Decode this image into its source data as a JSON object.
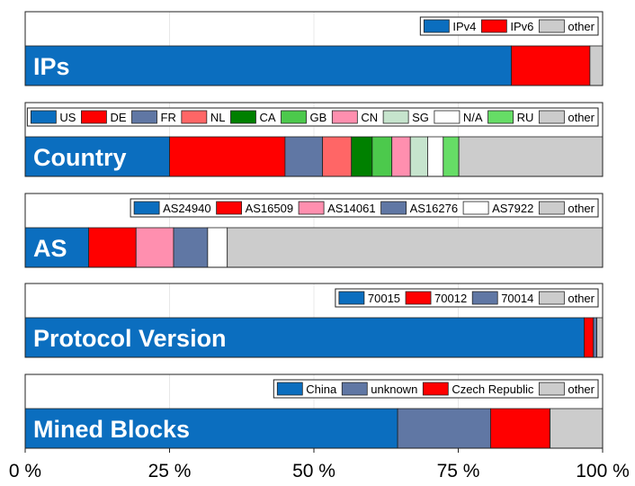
{
  "chart_data": {
    "type": "bar",
    "orientation": "horizontal-stacked-100",
    "xlim": [
      0,
      100
    ],
    "x_ticks": [
      {
        "value": 0,
        "label": "0 %"
      },
      {
        "value": 25,
        "label": "25 %"
      },
      {
        "value": 50,
        "label": "50 %"
      },
      {
        "value": 75,
        "label": "75 %"
      },
      {
        "value": 100,
        "label": "100 %"
      }
    ],
    "grid": true,
    "legend_position": "top-right",
    "panels": [
      {
        "title": "IPs",
        "segments": [
          {
            "name": "IPv4",
            "value": 84.2,
            "color": "#0b6ebf"
          },
          {
            "name": "IPv6",
            "value": 13.6,
            "color": "#ff0000"
          },
          {
            "name": "other",
            "value": 2.2,
            "color": "#cccccc"
          }
        ]
      },
      {
        "title": "Country",
        "segments": [
          {
            "name": "US",
            "value": 25.0,
            "color": "#0b6ebf"
          },
          {
            "name": "DE",
            "value": 20.0,
            "color": "#ff0000"
          },
          {
            "name": "FR",
            "value": 6.5,
            "color": "#6077a4"
          },
          {
            "name": "NL",
            "value": 5.0,
            "color": "#ff6666"
          },
          {
            "name": "CA",
            "value": 3.6,
            "color": "#008000"
          },
          {
            "name": "GB",
            "value": 3.4,
            "color": "#4cc94c"
          },
          {
            "name": "CN",
            "value": 3.2,
            "color": "#ff8faf"
          },
          {
            "name": "SG",
            "value": 3.0,
            "color": "#c6e4cd"
          },
          {
            "name": "N/A",
            "value": 2.7,
            "color": "#ffffff"
          },
          {
            "name": "RU",
            "value": 2.7,
            "color": "#66dd66"
          },
          {
            "name": "other",
            "value": 24.9,
            "color": "#cccccc"
          }
        ]
      },
      {
        "title": "AS",
        "segments": [
          {
            "name": "AS24940",
            "value": 11.0,
            "color": "#0b6ebf"
          },
          {
            "name": "AS16509",
            "value": 8.2,
            "color": "#ff0000"
          },
          {
            "name": "AS14061",
            "value": 6.5,
            "color": "#ff8faf"
          },
          {
            "name": "AS16276",
            "value": 5.9,
            "color": "#6077a4"
          },
          {
            "name": "AS7922",
            "value": 3.4,
            "color": "#ffffff"
          },
          {
            "name": "other",
            "value": 65.0,
            "color": "#cccccc"
          }
        ]
      },
      {
        "title": "Protocol Version",
        "segments": [
          {
            "name": "70015",
            "value": 96.8,
            "color": "#0b6ebf"
          },
          {
            "name": "70012",
            "value": 1.6,
            "color": "#ff0000"
          },
          {
            "name": "70014",
            "value": 0.6,
            "color": "#6077a4"
          },
          {
            "name": "other",
            "value": 1.0,
            "color": "#cccccc"
          }
        ]
      },
      {
        "title": "Mined Blocks",
        "segments": [
          {
            "name": "China",
            "value": 64.5,
            "color": "#0b6ebf"
          },
          {
            "name": "unknown",
            "value": 16.1,
            "color": "#6077a4"
          },
          {
            "name": "Czech Republic",
            "value": 10.3,
            "color": "#ff0000"
          },
          {
            "name": "other",
            "value": 9.1,
            "color": "#cccccc"
          }
        ]
      }
    ]
  }
}
